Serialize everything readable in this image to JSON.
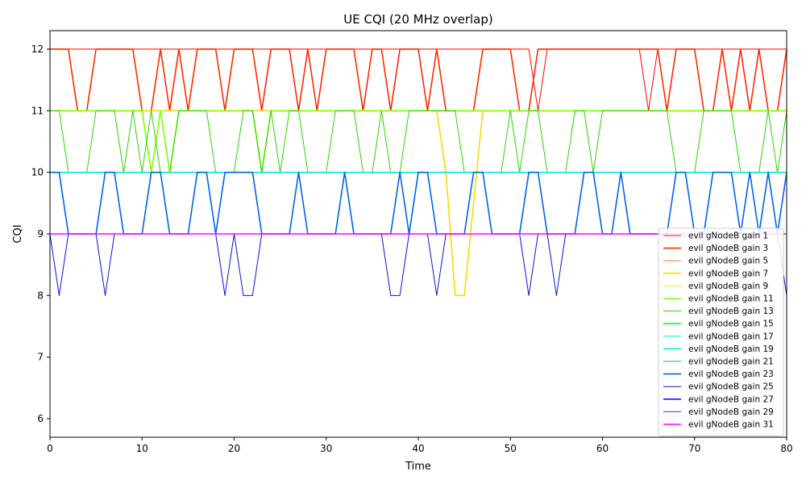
{
  "chart_data": {
    "type": "line",
    "title": "UE CQI (20 MHz overlap)",
    "xlabel": "Time",
    "ylabel": "CQI",
    "xlim": [
      0,
      80
    ],
    "ylim": [
      5.7,
      12.3
    ],
    "xticks": [
      0,
      10,
      20,
      30,
      40,
      50,
      60,
      70,
      80
    ],
    "yticks": [
      6,
      7,
      8,
      9,
      10,
      11,
      12
    ],
    "grid": false,
    "legend_position": "lower-right",
    "series": [
      {
        "name": "evil gNodeB gain 1",
        "color": "#ff0000",
        "width": 1,
        "points": [
          [
            0,
            12
          ],
          [
            52,
            12
          ],
          [
            53,
            11
          ],
          [
            54,
            12
          ],
          [
            64,
            12
          ],
          [
            65,
            11
          ],
          [
            66,
            12
          ],
          [
            80,
            12
          ]
        ]
      },
      {
        "name": "evil gNodeB gain 3",
        "color": "#ff2a00",
        "width": 1.6,
        "points": [
          [
            0,
            12
          ],
          [
            2,
            12
          ],
          [
            3,
            11
          ],
          [
            4,
            11
          ],
          [
            5,
            12
          ],
          [
            9,
            12
          ],
          [
            10,
            11
          ],
          [
            11,
            11
          ],
          [
            12,
            12
          ],
          [
            13,
            11
          ],
          [
            14,
            12
          ],
          [
            15,
            11
          ],
          [
            16,
            12
          ],
          [
            18,
            12
          ],
          [
            19,
            11
          ],
          [
            20,
            12
          ],
          [
            22,
            12
          ],
          [
            23,
            11
          ],
          [
            24,
            12
          ],
          [
            26,
            12
          ],
          [
            27,
            11
          ],
          [
            28,
            12
          ],
          [
            29,
            11
          ],
          [
            30,
            12
          ],
          [
            33,
            12
          ],
          [
            34,
            11
          ],
          [
            35,
            12
          ],
          [
            36,
            12
          ],
          [
            37,
            11
          ],
          [
            38,
            12
          ],
          [
            40,
            12
          ],
          [
            41,
            11
          ],
          [
            42,
            12
          ],
          [
            43,
            11
          ],
          [
            46,
            11
          ],
          [
            47,
            12
          ],
          [
            50,
            12
          ],
          [
            51,
            11
          ],
          [
            52,
            11
          ],
          [
            53,
            12
          ],
          [
            66,
            12
          ],
          [
            67,
            11
          ],
          [
            68,
            12
          ],
          [
            70,
            12
          ],
          [
            71,
            11
          ],
          [
            72,
            11
          ],
          [
            73,
            12
          ],
          [
            74,
            11
          ],
          [
            75,
            12
          ],
          [
            76,
            11
          ],
          [
            77,
            12
          ],
          [
            78,
            11
          ],
          [
            79,
            11
          ],
          [
            80,
            12
          ]
        ]
      },
      {
        "name": "evil gNodeB gain 5",
        "color": "#ff7f0e",
        "width": 1,
        "points": []
      },
      {
        "name": "evil gNodeB gain 7",
        "color": "#ffd700",
        "width": 1.6,
        "points": [
          [
            0,
            11
          ],
          [
            42,
            11
          ],
          [
            43,
            10
          ],
          [
            44,
            8
          ],
          [
            45,
            8
          ],
          [
            46,
            9.5
          ],
          [
            47,
            11
          ],
          [
            80,
            11
          ]
        ]
      },
      {
        "name": "evil gNodeB gain 9",
        "color": "#d4ff00",
        "width": 1,
        "points": []
      },
      {
        "name": "evil gNodeB gain 11",
        "color": "#7fff00",
        "width": 1.6,
        "points": [
          [
            0,
            11
          ],
          [
            10,
            11
          ],
          [
            11,
            10
          ],
          [
            12,
            11
          ],
          [
            13,
            10
          ],
          [
            14,
            11
          ],
          [
            22,
            11
          ],
          [
            23,
            10
          ],
          [
            24,
            11
          ],
          [
            80,
            11
          ]
        ]
      },
      {
        "name": "evil gNodeB gain 13",
        "color": "#2ad400",
        "width": 1,
        "points": [
          [
            0,
            11
          ],
          [
            1,
            11
          ],
          [
            2,
            10
          ],
          [
            4,
            10
          ],
          [
            5,
            11
          ],
          [
            7,
            11
          ],
          [
            8,
            10
          ],
          [
            9,
            11
          ],
          [
            10,
            10
          ],
          [
            11,
            11
          ],
          [
            12,
            10
          ],
          [
            13,
            10
          ],
          [
            14,
            11
          ],
          [
            16,
            11
          ],
          [
            17,
            11
          ],
          [
            18,
            10
          ],
          [
            20,
            10
          ],
          [
            21,
            11
          ],
          [
            22,
            11
          ],
          [
            23,
            10
          ],
          [
            24,
            11
          ],
          [
            25,
            10
          ],
          [
            26,
            11
          ],
          [
            27,
            11
          ],
          [
            28,
            10
          ],
          [
            30,
            10
          ],
          [
            31,
            11
          ],
          [
            33,
            11
          ],
          [
            34,
            10
          ],
          [
            35,
            10
          ],
          [
            36,
            11
          ],
          [
            37,
            10
          ],
          [
            38,
            10
          ],
          [
            39,
            11
          ],
          [
            44,
            11
          ],
          [
            45,
            10
          ],
          [
            49,
            10
          ],
          [
            50,
            11
          ],
          [
            51,
            10
          ],
          [
            52,
            11
          ],
          [
            53,
            11
          ],
          [
            54,
            10
          ],
          [
            56,
            10
          ],
          [
            57,
            11
          ],
          [
            58,
            11
          ],
          [
            59,
            10
          ],
          [
            60,
            11
          ],
          [
            67,
            11
          ],
          [
            68,
            10
          ],
          [
            70,
            10
          ],
          [
            71,
            11
          ],
          [
            74,
            11
          ],
          [
            75,
            10
          ],
          [
            77,
            10
          ],
          [
            78,
            11
          ],
          [
            79,
            10
          ],
          [
            80,
            11
          ]
        ]
      },
      {
        "name": "evil gNodeB gain 15",
        "color": "#00ff2a",
        "width": 1.6,
        "points": []
      },
      {
        "name": "evil gNodeB gain 17",
        "color": "#00ffaa",
        "width": 1,
        "points": []
      },
      {
        "name": "evil gNodeB gain 19",
        "color": "#00e5e5",
        "width": 1.6,
        "points": [
          [
            0,
            10
          ],
          [
            80,
            10
          ]
        ]
      },
      {
        "name": "evil gNodeB gain 21",
        "color": "#00aaff",
        "width": 1,
        "points": []
      },
      {
        "name": "evil gNodeB gain 23",
        "color": "#0064e6",
        "width": 1.6,
        "points": [
          [
            0,
            10
          ],
          [
            1,
            10
          ],
          [
            2,
            9
          ],
          [
            5,
            9
          ],
          [
            6,
            10
          ],
          [
            7,
            10
          ],
          [
            8,
            9
          ],
          [
            10,
            9
          ],
          [
            11,
            10
          ],
          [
            12,
            10
          ],
          [
            13,
            9
          ],
          [
            15,
            9
          ],
          [
            16,
            10
          ],
          [
            17,
            10
          ],
          [
            18,
            9
          ],
          [
            19,
            10
          ],
          [
            22,
            10
          ],
          [
            23,
            9
          ],
          [
            26,
            9
          ],
          [
            27,
            10
          ],
          [
            28,
            9
          ],
          [
            31,
            9
          ],
          [
            32,
            10
          ],
          [
            33,
            9
          ],
          [
            37,
            9
          ],
          [
            38,
            10
          ],
          [
            39,
            9
          ],
          [
            40,
            10
          ],
          [
            41,
            10
          ],
          [
            42,
            9
          ],
          [
            45,
            9
          ],
          [
            46,
            10
          ],
          [
            47,
            10
          ],
          [
            48,
            9
          ],
          [
            51,
            9
          ],
          [
            52,
            10
          ],
          [
            53,
            10
          ],
          [
            54,
            9
          ],
          [
            57,
            9
          ],
          [
            58,
            10
          ],
          [
            59,
            10
          ],
          [
            60,
            9
          ],
          [
            61,
            9
          ],
          [
            62,
            10
          ],
          [
            63,
            9
          ],
          [
            67,
            9
          ],
          [
            68,
            10
          ],
          [
            69,
            10
          ],
          [
            70,
            9
          ],
          [
            71,
            9
          ],
          [
            72,
            10
          ],
          [
            74,
            10
          ],
          [
            75,
            9
          ],
          [
            76,
            10
          ],
          [
            77,
            9
          ],
          [
            78,
            10
          ],
          [
            79,
            9
          ],
          [
            80,
            10
          ]
        ]
      },
      {
        "name": "evil gNodeB gain 25",
        "color": "#0a14d4",
        "width": 1,
        "points": [
          [
            0,
            9
          ],
          [
            1,
            8
          ],
          [
            2,
            9
          ],
          [
            5,
            9
          ],
          [
            6,
            8
          ],
          [
            7,
            9
          ],
          [
            18,
            9
          ],
          [
            19,
            8
          ],
          [
            20,
            9
          ],
          [
            21,
            8
          ],
          [
            22,
            8
          ],
          [
            23,
            9
          ],
          [
            36,
            9
          ],
          [
            37,
            8
          ],
          [
            38,
            8
          ],
          [
            39,
            9
          ],
          [
            41,
            9
          ],
          [
            42,
            8
          ],
          [
            43,
            9
          ],
          [
            51,
            9
          ],
          [
            52,
            8
          ],
          [
            53,
            9
          ],
          [
            54,
            9
          ],
          [
            55,
            8
          ],
          [
            56,
            9
          ],
          [
            79,
            9
          ],
          [
            80,
            8
          ]
        ]
      },
      {
        "name": "evil gNodeB gain 27",
        "color": "#4000ff",
        "width": 1.6,
        "points": []
      },
      {
        "name": "evil gNodeB gain 29",
        "color": "#9400d3",
        "width": 1,
        "points": [
          [
            0,
            9
          ],
          [
            80,
            9
          ]
        ]
      },
      {
        "name": "evil gNodeB gain 31",
        "color": "#ff00ff",
        "width": 1.6,
        "points": [
          [
            0,
            9
          ],
          [
            80,
            9
          ]
        ]
      }
    ]
  }
}
